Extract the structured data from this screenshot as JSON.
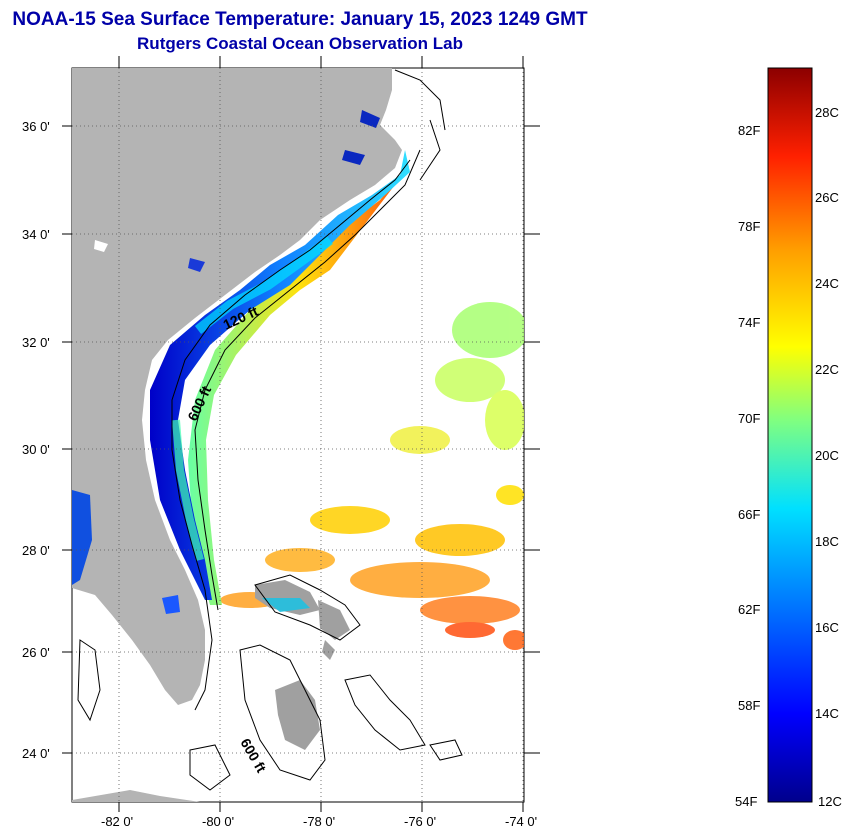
{
  "header": {
    "title": "NOAA-15 Sea Surface Temperature:  January 15, 2023 1249 GMT",
    "subtitle": "Rutgers Coastal Ocean Observation Lab"
  },
  "map": {
    "lat_labels": [
      "36 0'",
      "34 0'",
      "32 0'",
      "30 0'",
      "28 0'",
      "26 0'",
      "24 0'"
    ],
    "lon_labels": [
      "-82 0'",
      "-80 0'",
      "-78 0'",
      "-76 0'",
      "-74 0'"
    ],
    "isobath_labels": [
      "120 ft",
      "600 ft",
      "600 ft"
    ],
    "colors": {
      "land": "#b4b4b4",
      "isobath": "#000000",
      "grid": "#555555"
    }
  },
  "colorbar": {
    "fahrenheit": [
      "82F",
      "78F",
      "74F",
      "70F",
      "66F",
      "62F",
      "58F",
      "54F"
    ],
    "celsius": [
      "28C",
      "26C",
      "24C",
      "22C",
      "20C",
      "18C",
      "16C",
      "14C",
      "12C"
    ],
    "colors": [
      "#00008c",
      "#0000ff",
      "#0080ff",
      "#00e0ff",
      "#80ff80",
      "#ffff00",
      "#ffa000",
      "#ff2000",
      "#8c0000"
    ]
  }
}
